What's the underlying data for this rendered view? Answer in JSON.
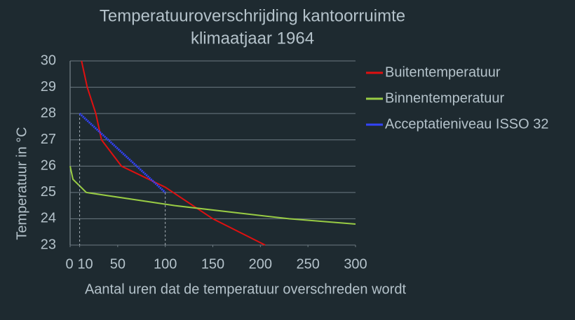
{
  "chart_data": {
    "type": "line",
    "title": [
      "Temperatuuroverschrijding kantoorruimte",
      "klimaatjaar 1964"
    ],
    "x_label": "Aantal uren dat de temperatuur overschreden wordt",
    "y_label": "Temperatuur in °C",
    "xlim": [
      0,
      300
    ],
    "xticks": [
      0,
      10,
      50,
      100,
      150,
      200,
      250,
      300
    ],
    "ylim": [
      23,
      30
    ],
    "yticks": [
      23,
      24,
      25,
      26,
      27,
      28,
      29,
      30
    ],
    "grid": true,
    "series": [
      {
        "name": "Buitentemperatuur",
        "color": "#e01010",
        "x": [
          12,
          18,
          27,
          33,
          54,
          100,
          150,
          205
        ],
        "values": [
          30,
          29,
          28,
          27,
          26,
          25.2,
          24,
          23
        ]
      },
      {
        "name": "Binnentemperatuur",
        "color": "#99cc44",
        "x": [
          0,
          3,
          17,
          110,
          230,
          300
        ],
        "values": [
          26,
          25.5,
          25,
          24.5,
          24,
          23.8
        ]
      },
      {
        "name": "Acceptatieniveau ISSO 32",
        "color": "#3344ff",
        "x": [
          10,
          100
        ],
        "values": [
          28,
          25
        ]
      }
    ]
  }
}
